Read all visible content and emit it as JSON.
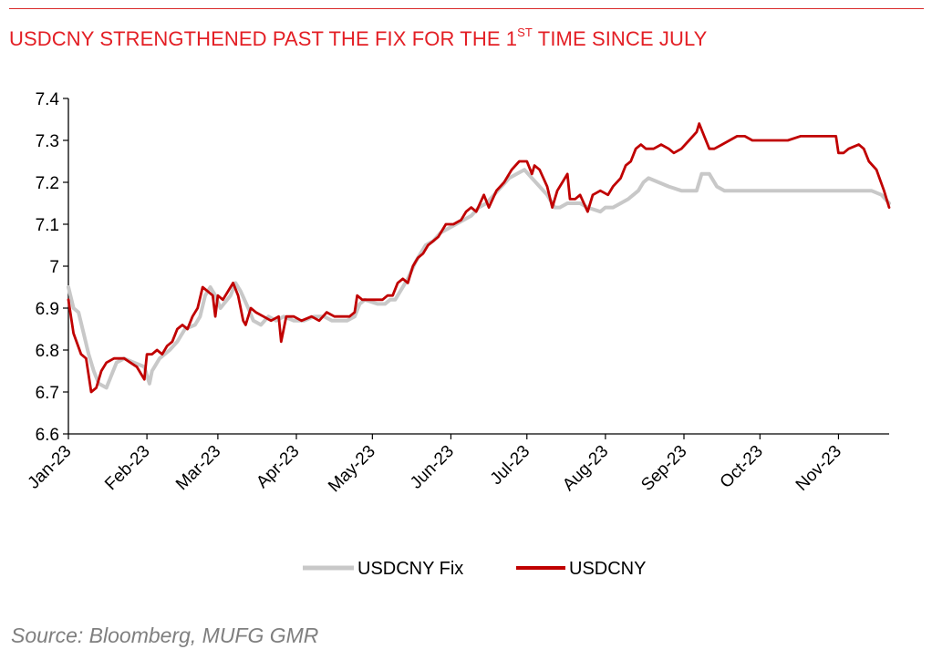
{
  "title": {
    "pre": "USDCNY STRENGTHENED PAST THE FIX FOR THE 1",
    "sup": "ST",
    "post": " TIME SINCE JULY"
  },
  "source": "Source: Bloomberg, MUFG GMR",
  "colors": {
    "fix": "#c8c8c8",
    "spot": "#c00000",
    "title": "#e31e24",
    "rule": "#d92b2b"
  },
  "chart_data": {
    "type": "line",
    "title": "USDCNY STRENGTHENED PAST THE FIX FOR THE 1ST TIME SINCE JULY",
    "xlabel": "",
    "ylabel": "",
    "ylim": [
      6.6,
      7.4
    ],
    "yticks": [
      "6.6",
      "6.7",
      "6.8",
      "6.9",
      "7",
      "7.1",
      "7.2",
      "7.3",
      "7.4"
    ],
    "xlim": [
      "2023-01-01",
      "2023-11-21"
    ],
    "xticks": [
      "Jan-23",
      "Feb-23",
      "Mar-23",
      "Apr-23",
      "May-23",
      "Jun-23",
      "Jul-23",
      "Aug-23",
      "Sep-23",
      "Oct-23",
      "Nov-23"
    ],
    "xtick_dates": [
      "2023-01-01",
      "2023-02-01",
      "2023-03-01",
      "2023-04-01",
      "2023-05-01",
      "2023-06-01",
      "2023-07-01",
      "2023-08-01",
      "2023-09-01",
      "2023-10-01",
      "2023-11-01"
    ],
    "grid": false,
    "legend": "bottom",
    "series": [
      {
        "name": "USDCNY Fix",
        "points": [
          [
            "2023-01-01",
            6.95
          ],
          [
            "2023-01-03",
            6.9
          ],
          [
            "2023-01-05",
            6.89
          ],
          [
            "2023-01-07",
            6.84
          ],
          [
            "2023-01-09",
            6.79
          ],
          [
            "2023-01-11",
            6.75
          ],
          [
            "2023-01-13",
            6.72
          ],
          [
            "2023-01-16",
            6.71
          ],
          [
            "2023-01-18",
            6.74
          ],
          [
            "2023-01-20",
            6.77
          ],
          [
            "2023-01-23",
            6.78
          ],
          [
            "2023-01-27",
            6.77
          ],
          [
            "2023-01-31",
            6.76
          ],
          [
            "2023-02-02",
            6.72
          ],
          [
            "2023-02-03",
            6.75
          ],
          [
            "2023-02-06",
            6.78
          ],
          [
            "2023-02-08",
            6.79
          ],
          [
            "2023-02-10",
            6.8
          ],
          [
            "2023-02-13",
            6.82
          ],
          [
            "2023-02-16",
            6.85
          ],
          [
            "2023-02-20",
            6.86
          ],
          [
            "2023-02-22",
            6.88
          ],
          [
            "2023-02-24",
            6.93
          ],
          [
            "2023-02-26",
            6.95
          ],
          [
            "2023-02-28",
            6.93
          ],
          [
            "2023-03-02",
            6.9
          ],
          [
            "2023-03-06",
            6.93
          ],
          [
            "2023-03-08",
            6.96
          ],
          [
            "2023-03-10",
            6.94
          ],
          [
            "2023-03-13",
            6.9
          ],
          [
            "2023-03-15",
            6.87
          ],
          [
            "2023-03-18",
            6.86
          ],
          [
            "2023-03-21",
            6.88
          ],
          [
            "2023-03-24",
            6.87
          ],
          [
            "2023-03-27",
            6.88
          ],
          [
            "2023-03-31",
            6.87
          ],
          [
            "2023-04-04",
            6.87
          ],
          [
            "2023-04-08",
            6.88
          ],
          [
            "2023-04-12",
            6.88
          ],
          [
            "2023-04-15",
            6.87
          ],
          [
            "2023-04-18",
            6.87
          ],
          [
            "2023-04-21",
            6.87
          ],
          [
            "2023-04-24",
            6.88
          ],
          [
            "2023-04-26",
            6.91
          ],
          [
            "2023-04-28",
            6.92
          ],
          [
            "2023-05-03",
            6.91
          ],
          [
            "2023-05-06",
            6.91
          ],
          [
            "2023-05-08",
            6.92
          ],
          [
            "2023-05-10",
            6.92
          ],
          [
            "2023-05-12",
            6.94
          ],
          [
            "2023-05-15",
            6.97
          ],
          [
            "2023-05-18",
            7.01
          ],
          [
            "2023-05-20",
            7.03
          ],
          [
            "2023-05-22",
            7.05
          ],
          [
            "2023-05-25",
            7.06
          ],
          [
            "2023-05-28",
            7.08
          ],
          [
            "2023-05-31",
            7.09
          ],
          [
            "2023-06-03",
            7.1
          ],
          [
            "2023-06-06",
            7.11
          ],
          [
            "2023-06-09",
            7.12
          ],
          [
            "2023-06-12",
            7.14
          ],
          [
            "2023-06-15",
            7.15
          ],
          [
            "2023-06-18",
            7.17
          ],
          [
            "2023-06-21",
            7.19
          ],
          [
            "2023-06-24",
            7.21
          ],
          [
            "2023-06-27",
            7.22
          ],
          [
            "2023-06-30",
            7.23
          ],
          [
            "2023-07-03",
            7.21
          ],
          [
            "2023-07-06",
            7.19
          ],
          [
            "2023-07-09",
            7.17
          ],
          [
            "2023-07-12",
            7.14
          ],
          [
            "2023-07-14",
            7.14
          ],
          [
            "2023-07-17",
            7.15
          ],
          [
            "2023-07-22",
            7.15
          ],
          [
            "2023-07-25",
            7.14
          ],
          [
            "2023-07-30",
            7.13
          ],
          [
            "2023-08-01",
            7.14
          ],
          [
            "2023-08-04",
            7.14
          ],
          [
            "2023-08-07",
            7.15
          ],
          [
            "2023-08-10",
            7.16
          ],
          [
            "2023-08-12",
            7.17
          ],
          [
            "2023-08-14",
            7.18
          ],
          [
            "2023-08-16",
            7.2
          ],
          [
            "2023-08-18",
            7.21
          ],
          [
            "2023-08-22",
            7.2
          ],
          [
            "2023-08-26",
            7.19
          ],
          [
            "2023-08-31",
            7.18
          ],
          [
            "2023-09-04",
            7.18
          ],
          [
            "2023-09-06",
            7.18
          ],
          [
            "2023-09-08",
            7.22
          ],
          [
            "2023-09-11",
            7.22
          ],
          [
            "2023-09-14",
            7.19
          ],
          [
            "2023-09-17",
            7.18
          ],
          [
            "2023-09-22",
            7.18
          ],
          [
            "2023-09-27",
            7.18
          ],
          [
            "2023-10-01",
            7.18
          ],
          [
            "2023-10-10",
            7.18
          ],
          [
            "2023-10-20",
            7.18
          ],
          [
            "2023-10-31",
            7.18
          ],
          [
            "2023-11-08",
            7.18
          ],
          [
            "2023-11-14",
            7.18
          ],
          [
            "2023-11-18",
            7.17
          ],
          [
            "2023-11-21",
            7.15
          ]
        ]
      },
      {
        "name": "USDCNY",
        "points": [
          [
            "2023-01-01",
            6.92
          ],
          [
            "2023-01-03",
            6.84
          ],
          [
            "2023-01-06",
            6.79
          ],
          [
            "2023-01-08",
            6.78
          ],
          [
            "2023-01-09",
            6.74
          ],
          [
            "2023-01-10",
            6.7
          ],
          [
            "2023-01-12",
            6.71
          ],
          [
            "2023-01-14",
            6.75
          ],
          [
            "2023-01-16",
            6.77
          ],
          [
            "2023-01-19",
            6.78
          ],
          [
            "2023-01-23",
            6.78
          ],
          [
            "2023-01-28",
            6.76
          ],
          [
            "2023-01-31",
            6.73
          ],
          [
            "2023-02-01",
            6.79
          ],
          [
            "2023-02-03",
            6.79
          ],
          [
            "2023-02-05",
            6.8
          ],
          [
            "2023-02-07",
            6.79
          ],
          [
            "2023-02-09",
            6.81
          ],
          [
            "2023-02-11",
            6.82
          ],
          [
            "2023-02-13",
            6.85
          ],
          [
            "2023-02-15",
            6.86
          ],
          [
            "2023-02-17",
            6.85
          ],
          [
            "2023-02-19",
            6.88
          ],
          [
            "2023-02-21",
            6.9
          ],
          [
            "2023-02-23",
            6.95
          ],
          [
            "2023-02-25",
            6.94
          ],
          [
            "2023-02-27",
            6.93
          ],
          [
            "2023-02-28",
            6.88
          ],
          [
            "2023-03-01",
            6.93
          ],
          [
            "2023-03-03",
            6.92
          ],
          [
            "2023-03-05",
            6.94
          ],
          [
            "2023-03-07",
            6.96
          ],
          [
            "2023-03-09",
            6.93
          ],
          [
            "2023-03-11",
            6.87
          ],
          [
            "2023-03-12",
            6.86
          ],
          [
            "2023-03-14",
            6.9
          ],
          [
            "2023-03-16",
            6.89
          ],
          [
            "2023-03-19",
            6.88
          ],
          [
            "2023-03-22",
            6.87
          ],
          [
            "2023-03-25",
            6.88
          ],
          [
            "2023-03-26",
            6.82
          ],
          [
            "2023-03-28",
            6.88
          ],
          [
            "2023-03-31",
            6.88
          ],
          [
            "2023-04-03",
            6.87
          ],
          [
            "2023-04-07",
            6.88
          ],
          [
            "2023-04-10",
            6.87
          ],
          [
            "2023-04-13",
            6.89
          ],
          [
            "2023-04-16",
            6.88
          ],
          [
            "2023-04-19",
            6.88
          ],
          [
            "2023-04-22",
            6.88
          ],
          [
            "2023-04-24",
            6.89
          ],
          [
            "2023-04-25",
            6.93
          ],
          [
            "2023-04-27",
            6.92
          ],
          [
            "2023-05-01",
            6.92
          ],
          [
            "2023-05-05",
            6.92
          ],
          [
            "2023-05-07",
            6.93
          ],
          [
            "2023-05-09",
            6.93
          ],
          [
            "2023-05-11",
            6.96
          ],
          [
            "2023-05-13",
            6.97
          ],
          [
            "2023-05-15",
            6.96
          ],
          [
            "2023-05-17",
            7.0
          ],
          [
            "2023-05-19",
            7.02
          ],
          [
            "2023-05-21",
            7.03
          ],
          [
            "2023-05-23",
            7.05
          ],
          [
            "2023-05-25",
            7.06
          ],
          [
            "2023-05-27",
            7.07
          ],
          [
            "2023-05-30",
            7.1
          ],
          [
            "2023-06-02",
            7.1
          ],
          [
            "2023-06-05",
            7.11
          ],
          [
            "2023-06-07",
            7.13
          ],
          [
            "2023-06-09",
            7.14
          ],
          [
            "2023-06-11",
            7.13
          ],
          [
            "2023-06-14",
            7.17
          ],
          [
            "2023-06-16",
            7.14
          ],
          [
            "2023-06-19",
            7.18
          ],
          [
            "2023-06-22",
            7.2
          ],
          [
            "2023-06-25",
            7.23
          ],
          [
            "2023-06-28",
            7.25
          ],
          [
            "2023-07-01",
            7.25
          ],
          [
            "2023-07-03",
            7.22
          ],
          [
            "2023-07-04",
            7.24
          ],
          [
            "2023-07-06",
            7.23
          ],
          [
            "2023-07-09",
            7.19
          ],
          [
            "2023-07-11",
            7.14
          ],
          [
            "2023-07-13",
            7.18
          ],
          [
            "2023-07-15",
            7.2
          ],
          [
            "2023-07-17",
            7.22
          ],
          [
            "2023-07-18",
            7.16
          ],
          [
            "2023-07-20",
            7.16
          ],
          [
            "2023-07-22",
            7.17
          ],
          [
            "2023-07-25",
            7.13
          ],
          [
            "2023-07-27",
            7.17
          ],
          [
            "2023-07-30",
            7.18
          ],
          [
            "2023-08-02",
            7.17
          ],
          [
            "2023-08-04",
            7.19
          ],
          [
            "2023-08-07",
            7.21
          ],
          [
            "2023-08-09",
            7.24
          ],
          [
            "2023-08-11",
            7.25
          ],
          [
            "2023-08-13",
            7.28
          ],
          [
            "2023-08-15",
            7.29
          ],
          [
            "2023-08-17",
            7.28
          ],
          [
            "2023-08-20",
            7.28
          ],
          [
            "2023-08-23",
            7.29
          ],
          [
            "2023-08-26",
            7.28
          ],
          [
            "2023-08-28",
            7.27
          ],
          [
            "2023-08-31",
            7.28
          ],
          [
            "2023-09-03",
            7.3
          ],
          [
            "2023-09-06",
            7.32
          ],
          [
            "2023-09-07",
            7.34
          ],
          [
            "2023-09-09",
            7.31
          ],
          [
            "2023-09-11",
            7.28
          ],
          [
            "2023-09-13",
            7.28
          ],
          [
            "2023-09-16",
            7.29
          ],
          [
            "2023-09-19",
            7.3
          ],
          [
            "2023-09-22",
            7.31
          ],
          [
            "2023-09-25",
            7.31
          ],
          [
            "2023-09-28",
            7.3
          ],
          [
            "2023-10-05",
            7.3
          ],
          [
            "2023-10-12",
            7.3
          ],
          [
            "2023-10-17",
            7.31
          ],
          [
            "2023-10-21",
            7.31
          ],
          [
            "2023-10-25",
            7.31
          ],
          [
            "2023-10-28",
            7.31
          ],
          [
            "2023-10-31",
            7.31
          ],
          [
            "2023-11-01",
            7.27
          ],
          [
            "2023-11-03",
            7.27
          ],
          [
            "2023-11-05",
            7.28
          ],
          [
            "2023-11-09",
            7.29
          ],
          [
            "2023-11-11",
            7.28
          ],
          [
            "2023-11-13",
            7.25
          ],
          [
            "2023-11-16",
            7.23
          ],
          [
            "2023-11-19",
            7.18
          ],
          [
            "2023-11-21",
            7.14
          ]
        ]
      }
    ]
  }
}
